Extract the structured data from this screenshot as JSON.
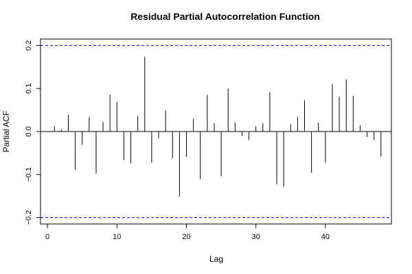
{
  "chart_data": {
    "type": "bar",
    "title": "Residual Partial Autocorrelation Function",
    "xlabel": "Lag",
    "ylabel": "Partial ACF",
    "xlim": [
      -1,
      49.5
    ],
    "ylim": [
      -0.215,
      0.215
    ],
    "x_ticks": [
      0,
      10,
      20,
      30,
      40
    ],
    "y_ticks": [
      -0.2,
      -0.1,
      0.0,
      0.1,
      0.2
    ],
    "y_tick_labels": [
      "−0.2",
      "−0.1",
      "0.0",
      "0.1",
      "0.2"
    ],
    "confidence_bounds": [
      0.2,
      -0.2
    ],
    "confidence_color": "#0000ff",
    "bar_color": "#000000",
    "grid": false,
    "lags": [
      1,
      2,
      3,
      4,
      5,
      6,
      7,
      8,
      9,
      10,
      11,
      12,
      13,
      14,
      15,
      16,
      17,
      18,
      19,
      20,
      21,
      22,
      23,
      24,
      25,
      26,
      27,
      28,
      29,
      30,
      31,
      32,
      33,
      34,
      35,
      36,
      37,
      38,
      39,
      40,
      41,
      42,
      43,
      44,
      45,
      46,
      47,
      48
    ],
    "values": [
      0.013,
      0.004,
      0.039,
      -0.089,
      -0.031,
      0.033,
      -0.098,
      0.022,
      0.086,
      0.069,
      -0.066,
      -0.074,
      0.036,
      0.174,
      -0.072,
      -0.016,
      0.049,
      -0.062,
      -0.151,
      -0.059,
      0.029,
      -0.111,
      0.085,
      0.019,
      -0.104,
      0.1,
      0.021,
      -0.01,
      -0.02,
      0.012,
      0.019,
      0.091,
      -0.123,
      -0.128,
      0.017,
      0.034,
      0.073,
      -0.096,
      0.021,
      -0.072,
      0.11,
      0.081,
      0.121,
      0.083,
      0.014,
      -0.013,
      -0.02,
      -0.058
    ]
  }
}
